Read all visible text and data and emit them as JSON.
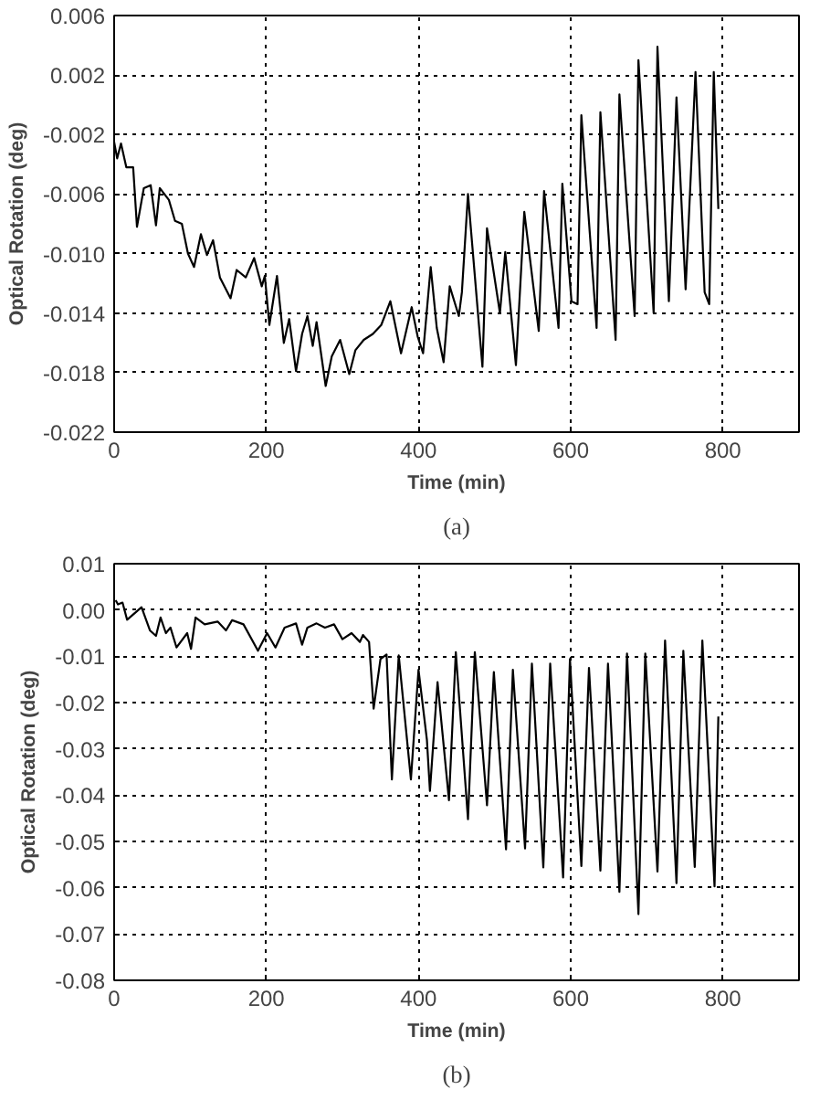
{
  "chart_data": [
    {
      "type": "line",
      "xlabel": "Time (min)",
      "ylabel": "Optical Rotation (deg)",
      "annotations": [
        "(a)"
      ],
      "xlim": [
        0,
        900
      ],
      "xticks": [
        0,
        200,
        400,
        600,
        800
      ],
      "ylim": [
        -0.022,
        0.006
      ],
      "yticks": [
        -0.022,
        -0.018,
        -0.014,
        {
          "value": -0.01,
          "label": "-0.010"
        },
        -0.006,
        -0.002,
        0.002,
        0.006
      ],
      "grid": true,
      "line_style": "solid",
      "marker": "none",
      "series": [
        {
          "color": "#000000",
          "x": [
            0,
            4,
            9,
            16,
            25,
            30,
            39,
            48,
            55,
            60,
            72,
            80,
            89,
            91,
            97,
            105,
            114,
            122,
            130,
            139,
            153,
            161,
            173,
            184,
            194,
            198,
            204,
            214,
            223,
            230,
            239,
            247,
            254,
            261,
            266,
            278,
            286,
            297,
            309,
            317,
            328,
            340,
            351,
            363,
            377,
            391,
            399,
            406,
            416,
            424,
            433,
            441,
            453,
            457,
            465,
            484,
            490,
            507,
            514,
            528,
            539,
            558,
            565,
            584,
            589,
            601,
            609,
            614,
            634,
            639,
            659,
            664,
            684,
            689,
            709,
            714,
            729,
            739,
            751,
            764,
            776,
            782,
            788,
            794
          ],
          "values": [
            -0.0025,
            -0.0036,
            -0.0026,
            -0.0042,
            -0.0042,
            -0.0082,
            -0.0056,
            -0.0054,
            -0.0081,
            -0.0056,
            -0.0064,
            -0.0078,
            -0.008,
            -0.0085,
            -0.01,
            -0.0109,
            -0.0087,
            -0.0101,
            -0.0091,
            -0.0116,
            -0.013,
            -0.0111,
            -0.0116,
            -0.0103,
            -0.0122,
            -0.0115,
            -0.0148,
            -0.0115,
            -0.016,
            -0.0144,
            -0.0179,
            -0.0154,
            -0.0142,
            -0.0162,
            -0.0146,
            -0.0189,
            -0.0169,
            -0.0158,
            -0.0181,
            -0.0165,
            -0.0158,
            -0.0154,
            -0.0148,
            -0.0132,
            -0.0167,
            -0.0136,
            -0.0156,
            -0.0167,
            -0.0109,
            -0.015,
            -0.0173,
            -0.0122,
            -0.0142,
            -0.0126,
            -0.006,
            -0.0176,
            -0.0083,
            -0.014,
            -0.0099,
            -0.0175,
            -0.0072,
            -0.0152,
            -0.0058,
            -0.015,
            -0.0053,
            -0.0132,
            -0.0134,
            -0.0007,
            -0.015,
            -0.0005,
            -0.0158,
            0.0007,
            -0.0142,
            0.003,
            -0.014,
            0.0039,
            -0.0132,
            0.0005,
            -0.0124,
            0.0022,
            -0.0126,
            -0.0134,
            0.0022,
            -0.007
          ]
        }
      ]
    },
    {
      "type": "line",
      "xlabel": "Time (min)",
      "ylabel": "Optical Rotation (deg)",
      "annotations": [
        "(b)"
      ],
      "xlim": [
        0,
        900
      ],
      "xticks": [
        0,
        200,
        400,
        600,
        800
      ],
      "ylim": [
        -0.08,
        0.01
      ],
      "yticks": [
        -0.08,
        -0.07,
        -0.06,
        -0.05,
        -0.04,
        -0.03,
        -0.02,
        -0.01,
        {
          "value": 0,
          "label": "0.00"
        },
        0.01
      ],
      "grid": true,
      "line_style": "solid",
      "marker": "none",
      "series": [
        {
          "color": "#000000",
          "x": [
            2,
            5,
            11,
            17,
            36,
            47,
            55,
            61,
            68,
            74,
            82,
            96,
            101,
            107,
            119,
            136,
            147,
            155,
            170,
            189,
            201,
            212,
            224,
            239,
            247,
            254,
            266,
            277,
            289,
            300,
            312,
            323,
            327,
            335,
            341,
            350,
            358,
            365,
            374,
            390,
            400,
            411,
            415,
            425,
            440,
            449,
            465,
            474,
            490,
            499,
            515,
            524,
            540,
            549,
            564,
            573,
            590,
            599,
            614,
            624,
            639,
            649,
            664,
            674,
            689,
            698,
            714,
            724,
            739,
            748,
            763,
            773,
            789,
            794
          ],
          "values": [
            0.0021,
            0.0012,
            0.0016,
            -0.0021,
            0.0006,
            -0.0044,
            -0.0056,
            -0.0016,
            -0.005,
            -0.0038,
            -0.0081,
            -0.005,
            -0.0084,
            -0.0016,
            -0.0031,
            -0.0025,
            -0.0044,
            -0.0022,
            -0.0031,
            -0.0088,
            -0.005,
            -0.0081,
            -0.0038,
            -0.0029,
            -0.0075,
            -0.0038,
            -0.0029,
            -0.0038,
            -0.0031,
            -0.0063,
            -0.005,
            -0.0069,
            -0.0054,
            -0.0069,
            -0.0213,
            -0.0106,
            -0.0096,
            -0.0366,
            -0.0098,
            -0.0366,
            -0.0129,
            -0.028,
            -0.0391,
            -0.0156,
            -0.0411,
            -0.0091,
            -0.0452,
            -0.0091,
            -0.0422,
            -0.0134,
            -0.0517,
            -0.0129,
            -0.0515,
            -0.0116,
            -0.0556,
            -0.0116,
            -0.0578,
            -0.0106,
            -0.0553,
            -0.0125,
            -0.0563,
            -0.0116,
            -0.0609,
            -0.0094,
            -0.0657,
            -0.0094,
            -0.0565,
            -0.0066,
            -0.059,
            -0.0088,
            -0.0555,
            -0.0066,
            -0.0597,
            -0.023
          ]
        }
      ]
    }
  ]
}
